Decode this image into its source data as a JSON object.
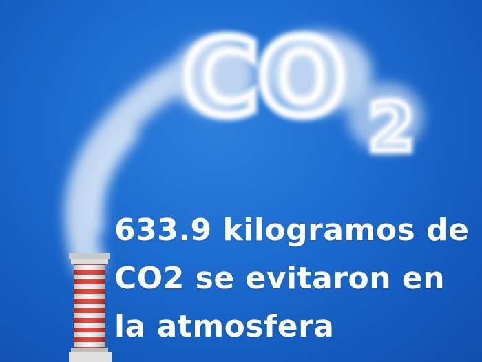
{
  "smoke_text": {
    "main": "CO",
    "subscript": "2"
  },
  "caption": {
    "lines": [
      "633.9 kilogramos de",
      "CO2 se evitaron en",
      "la atmosfera"
    ]
  },
  "colors": {
    "sky": "#1f6fd2",
    "smoke": "#e8f1fb",
    "chimney_red": "#e0352b",
    "chimney_white": "#f4f4f4",
    "caption_text": "#ffffff"
  },
  "icons": {
    "chimney": "chimney-icon",
    "smoke": "smoke-cloud-icon"
  }
}
